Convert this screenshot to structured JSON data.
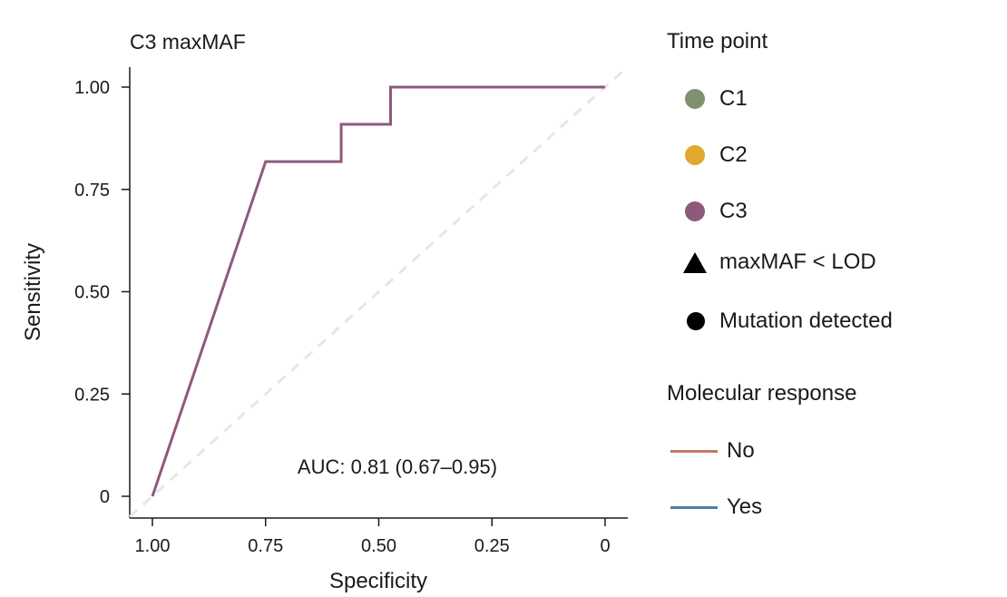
{
  "chart_data": {
    "type": "line",
    "title": "C3 maxMAF",
    "xlabel": "Specificity",
    "ylabel": "Sensitivity",
    "xlim": [
      1.0,
      0.0
    ],
    "ylim": [
      0.0,
      1.0
    ],
    "x_ticks": [
      1.0,
      0.75,
      0.5,
      0.25,
      0.0
    ],
    "x_tick_labels": [
      "1.00",
      "0.75",
      "0.50",
      "0.25",
      "0"
    ],
    "y_ticks": [
      0.0,
      0.25,
      0.5,
      0.75,
      1.0
    ],
    "y_tick_labels": [
      "0",
      "0.25",
      "0.50",
      "0.75",
      "1.00"
    ],
    "reference_line": {
      "from": [
        1.0,
        0.0
      ],
      "to": [
        0.0,
        1.0
      ],
      "style": "dashed",
      "color": "#e6e6e6"
    },
    "series": [
      {
        "name": "C3",
        "color": "#8e5a7c",
        "points": [
          {
            "specificity": 1.0,
            "sensitivity": 0.0
          },
          {
            "specificity": 0.75,
            "sensitivity": 0.818
          },
          {
            "specificity": 0.583,
            "sensitivity": 0.818
          },
          {
            "specificity": 0.583,
            "sensitivity": 0.909
          },
          {
            "specificity": 0.474,
            "sensitivity": 0.909
          },
          {
            "specificity": 0.474,
            "sensitivity": 1.0
          },
          {
            "specificity": 0.0,
            "sensitivity": 1.0
          }
        ]
      }
    ],
    "annotation": "AUC: 0.81 (0.67–0.95)",
    "grid": false
  },
  "legend": {
    "time_point": {
      "title": "Time point",
      "items": [
        {
          "label": "C1",
          "color": "#7f9270"
        },
        {
          "label": "C2",
          "color": "#e1a72e"
        },
        {
          "label": "C3",
          "color": "#8e5a7c"
        }
      ]
    },
    "markers": [
      {
        "label": "maxMAF < LOD",
        "icon": "triangle-icon"
      },
      {
        "label": "Mutation detected",
        "icon": "circle-icon"
      }
    ],
    "molecular_response": {
      "title": "Molecular response",
      "items": [
        {
          "label": "No",
          "color": "#c27a64"
        },
        {
          "label": "Yes",
          "color": "#4d80a2"
        }
      ]
    }
  }
}
